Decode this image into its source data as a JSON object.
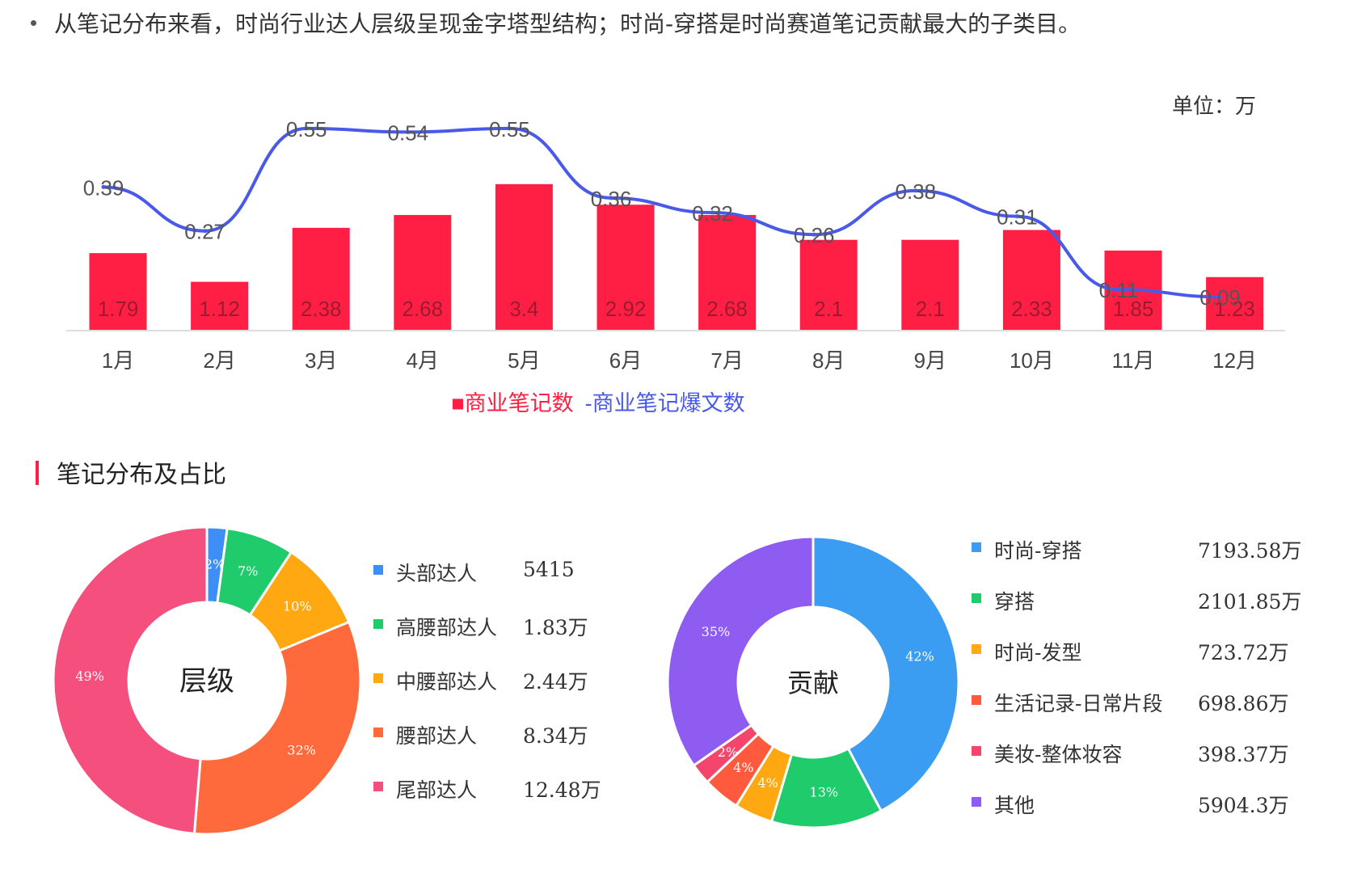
{
  "headline": "从笔记分布来看，时尚行业达人层级呈现金字塔型结构；时尚-穿搭是时尚赛道笔记贡献最大的子类目。",
  "chart_data": [
    {
      "type": "bar",
      "unit_label": "单位：万",
      "categories": [
        "1月",
        "2月",
        "3月",
        "4月",
        "5月",
        "6月",
        "7月",
        "8月",
        "9月",
        "10月",
        "11月",
        "12月"
      ],
      "series": [
        {
          "name": "商业笔记数",
          "kind": "bar",
          "color": "#ff1f44",
          "values": [
            1.79,
            1.12,
            2.38,
            2.68,
            3.4,
            2.92,
            2.68,
            2.1,
            2.1,
            2.33,
            1.85,
            1.23
          ]
        },
        {
          "name": "商业笔记爆文数",
          "kind": "line",
          "color": "#4a5ae8",
          "values": [
            0.39,
            0.27,
            0.55,
            0.54,
            0.55,
            0.36,
            0.32,
            0.26,
            0.38,
            0.31,
            0.11,
            0.09
          ]
        }
      ],
      "legend_position": "bottom-center",
      "legend_prefix": [
        "■",
        "-"
      ]
    },
    {
      "type": "pie",
      "center_label": "层级",
      "slices": [
        {
          "label": "头部达人",
          "value": 5415,
          "value_text": "5415",
          "pct": "2%",
          "color": "#3d8ff5"
        },
        {
          "label": "高腰部达人",
          "value": 18300,
          "value_text": "1.83万",
          "pct": "7%",
          "color": "#1fcb6a"
        },
        {
          "label": "中腰部达人",
          "value": 24400,
          "value_text": "2.44万",
          "pct": "10%",
          "color": "#ffa812"
        },
        {
          "label": "腰部达人",
          "value": 83400,
          "value_text": "8.34万",
          "pct": "32%",
          "color": "#ff6a3d"
        },
        {
          "label": "尾部达人",
          "value": 124800,
          "value_text": "12.48万",
          "pct": "49%",
          "color": "#f44f7d"
        }
      ]
    },
    {
      "type": "pie",
      "center_label": "贡献",
      "slices": [
        {
          "label": "时尚-穿搭",
          "value": 7193.58,
          "value_text": "7193.58万",
          "pct": "42%",
          "color": "#3b9df2"
        },
        {
          "label": "穿搭",
          "value": 2101.85,
          "value_text": "2101.85万",
          "pct": "13%",
          "color": "#1fcb6a"
        },
        {
          "label": "时尚-发型",
          "value": 723.72,
          "value_text": "723.72万",
          "pct": "4%",
          "color": "#ffa812"
        },
        {
          "label": "生活记录-日常片段",
          "value": 698.86,
          "value_text": "698.86万",
          "pct": "4%",
          "color": "#ff5a3d"
        },
        {
          "label": "美妆-整体妆容",
          "value": 398.37,
          "value_text": "398.37万",
          "pct": "2%",
          "color": "#f4466d"
        },
        {
          "label": "其他",
          "value": 5904.3,
          "value_text": "5904.3万",
          "pct": "35%",
          "color": "#8f5cf2"
        }
      ]
    }
  ],
  "section": {
    "title": "笔记分布及占比"
  }
}
